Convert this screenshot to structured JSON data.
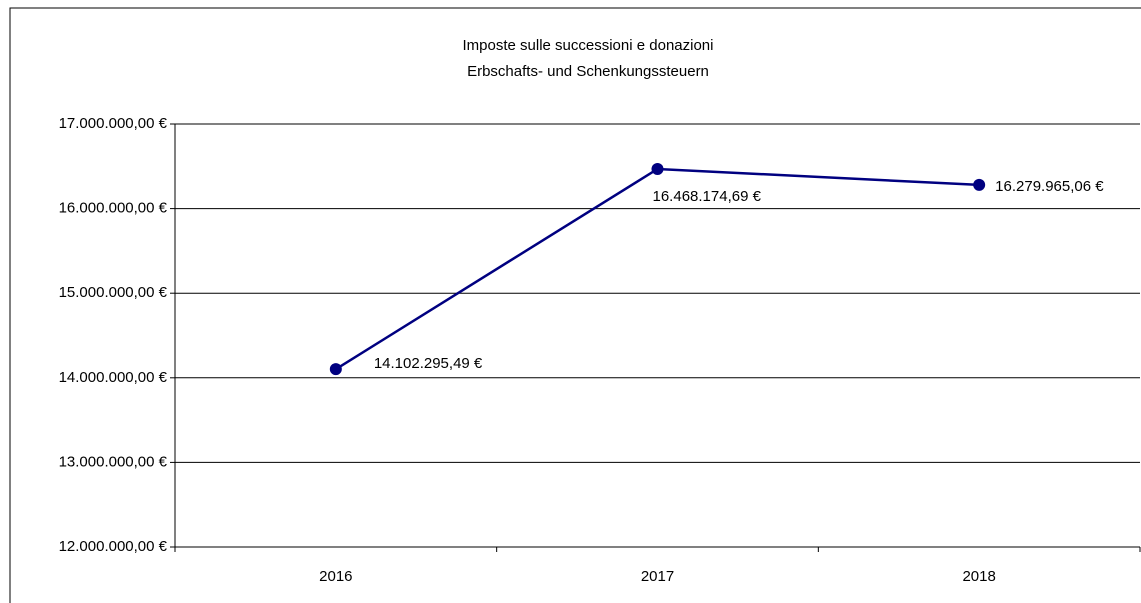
{
  "chart_data": {
    "type": "line",
    "title": "Imposte sulle successioni e donazioni",
    "subtitle": "Erbschafts- und Schenkungssteuern",
    "categories": [
      "2016",
      "2017",
      "2018"
    ],
    "series": [
      {
        "name": "Imposte sulle successioni e donazioni",
        "color": "#000080",
        "values": [
          14102295.49,
          16468174.69,
          16279965.06
        ],
        "value_labels": [
          "14.102.295,49 €",
          "16.468.174,69 €",
          "16.279.965,06 €"
        ]
      }
    ],
    "ylim": [
      12000000,
      17000000
    ],
    "yticks": [
      {
        "value": 12000000,
        "label": "12.000.000,00 €"
      },
      {
        "value": 13000000,
        "label": "13.000.000,00 €"
      },
      {
        "value": 14000000,
        "label": "14.000.000,00 €"
      },
      {
        "value": 15000000,
        "label": "15.000.000,00 €"
      },
      {
        "value": 16000000,
        "label": "16.000.000,00 €"
      },
      {
        "value": 17000000,
        "label": "17.000.000,00 €"
      }
    ],
    "grid": true
  }
}
